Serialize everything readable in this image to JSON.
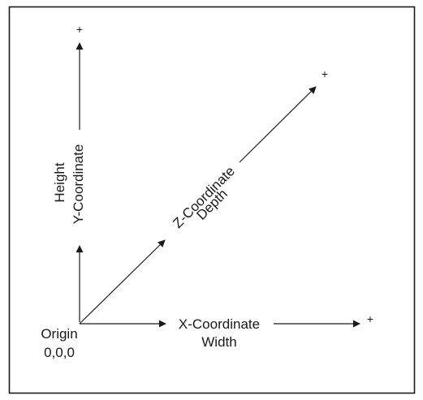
{
  "diagram": {
    "origin": {
      "label": "Origin",
      "value": "0,0,0"
    },
    "x_axis": {
      "label_line1": "X-Coordinate",
      "label_line2": "Width",
      "sign": "+"
    },
    "y_axis": {
      "label_line1": "Y-Coordinate",
      "label_line2": "Height",
      "sign": "+"
    },
    "z_axis": {
      "label_line1": "Z-Coordinate",
      "label_line2": "Depth",
      "sign": "+"
    }
  },
  "colors": {
    "line": "#1a1a1a",
    "background": "#ffffff"
  }
}
